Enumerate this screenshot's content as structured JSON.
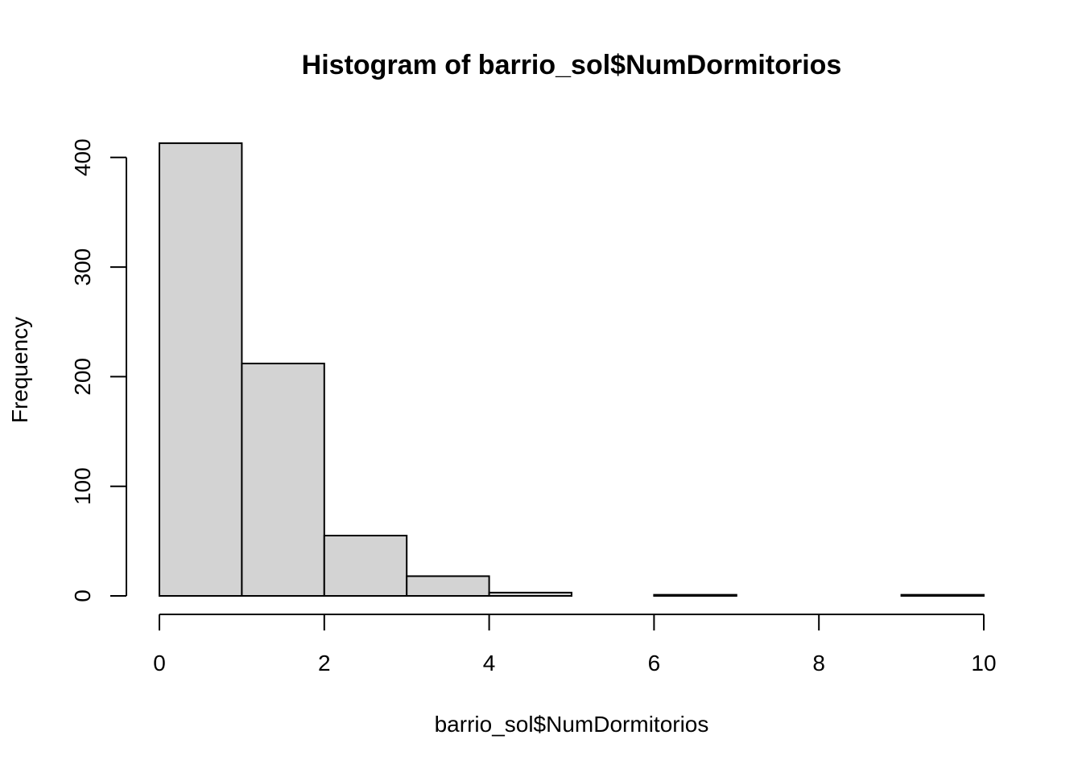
{
  "chart_data": {
    "type": "bar",
    "title": "Histogram of barrio_sol$NumDormitorios",
    "xlabel": "barrio_sol$NumDormitorios",
    "ylabel": "Frequency",
    "bins": [
      {
        "start": 0,
        "end": 1,
        "count": 413
      },
      {
        "start": 1,
        "end": 2,
        "count": 212
      },
      {
        "start": 2,
        "end": 3,
        "count": 55
      },
      {
        "start": 3,
        "end": 4,
        "count": 18
      },
      {
        "start": 4,
        "end": 5,
        "count": 3
      },
      {
        "start": 5,
        "end": 6,
        "count": 0
      },
      {
        "start": 6,
        "end": 7,
        "count": 1
      },
      {
        "start": 7,
        "end": 8,
        "count": 0
      },
      {
        "start": 8,
        "end": 9,
        "count": 0
      },
      {
        "start": 9,
        "end": 10,
        "count": 1
      }
    ],
    "xlim": [
      0,
      10
    ],
    "ylim": [
      0,
      413
    ],
    "x_ticks": [
      "0",
      "2",
      "4",
      "6",
      "8",
      "10"
    ],
    "y_ticks": [
      "0",
      "100",
      "200",
      "300",
      "400"
    ],
    "grid": false,
    "colors": {
      "bar_fill": "#d3d3d3",
      "bar_stroke": "#000000"
    }
  }
}
